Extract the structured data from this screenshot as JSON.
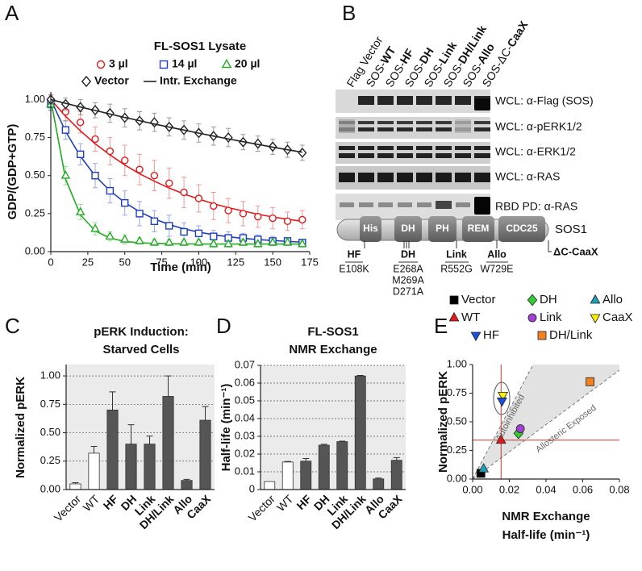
{
  "panel_labels": [
    "A",
    "B",
    "C",
    "D",
    "E"
  ],
  "chart_data": [
    {
      "type": "line",
      "title": "FL-SOS1 Lysate",
      "xlabel": "Time (min)",
      "ylabel": "GDP/(GDP+GTP)",
      "x": [
        0,
        10,
        20,
        30,
        40,
        50,
        60,
        70,
        80,
        90,
        100,
        110,
        120,
        130,
        140,
        150,
        160,
        170
      ],
      "xlim": [
        0,
        175
      ],
      "xticks": [
        0,
        25,
        50,
        75,
        100,
        125,
        150,
        175
      ],
      "ylim": [
        0,
        1.05
      ],
      "yticks": [
        {
          "value": 0,
          "label": "0.00"
        },
        0.25,
        {
          "value": 0.5,
          "label": "0.50"
        },
        0.75,
        {
          "value": 1,
          "label": "1.00"
        }
      ],
      "grid": false,
      "marker_fill": "open",
      "series": [
        {
          "name": "3 µl",
          "color": "#e31a1c",
          "marker": "circle",
          "values": [
            0.98,
            0.92,
            0.85,
            0.74,
            0.66,
            0.6,
            0.54,
            0.5,
            0.45,
            0.39,
            0.35,
            0.3,
            0.27,
            0.25,
            0.23,
            0.22,
            0.2,
            0.21
          ],
          "errors": [
            0.05,
            0.06,
            0.07,
            0.08,
            0.09,
            0.1,
            0.1,
            0.1,
            0.1,
            0.1,
            0.09,
            0.09,
            0.08,
            0.08,
            0.07,
            0.07,
            0.06,
            0.06
          ],
          "fit": [
            1.0,
            0.89,
            0.794,
            0.709,
            0.636,
            0.57,
            0.512,
            0.463,
            0.418,
            0.379,
            0.346,
            0.315,
            0.289,
            0.267,
            0.246,
            0.228,
            0.213,
            0.199
          ]
        },
        {
          "name": "14 µl",
          "color": "#1f3fbf",
          "marker": "square",
          "values": [
            0.97,
            0.8,
            0.64,
            0.5,
            0.4,
            0.32,
            0.25,
            0.2,
            0.17,
            0.13,
            0.12,
            0.1,
            0.09,
            0.09,
            0.08,
            0.07,
            0.07,
            0.06
          ],
          "errors": [
            0.04,
            0.06,
            0.07,
            0.08,
            0.08,
            0.08,
            0.08,
            0.07,
            0.07,
            0.06,
            0.05,
            0.04,
            0.04,
            0.03,
            0.03,
            0.03,
            0.02,
            0.02
          ],
          "fit": [
            1.0,
            0.79,
            0.627,
            0.498,
            0.4,
            0.323,
            0.262,
            0.215,
            0.178,
            0.15,
            0.128,
            0.111,
            0.098,
            0.087,
            0.079,
            0.073,
            0.067,
            0.063
          ]
        },
        {
          "name": "20 µl",
          "color": "#22aa22",
          "marker": "triangle",
          "values": [
            0.97,
            0.5,
            0.26,
            0.15,
            0.1,
            0.08,
            0.07,
            0.06,
            0.06,
            0.06,
            0.06,
            0.05,
            0.05,
            0.06,
            0.05,
            0.06,
            0.06,
            0.05
          ],
          "errors": [
            0.03,
            0.06,
            0.05,
            0.04,
            0.03,
            0.03,
            0.02,
            0.02,
            0.02,
            0.02,
            0.02,
            0.02,
            0.02,
            0.02,
            0.02,
            0.02,
            0.02,
            0.02
          ],
          "fit": [
            1.0,
            0.477,
            0.242,
            0.136,
            0.089,
            0.067,
            0.058,
            0.054,
            0.052,
            0.051,
            0.05,
            0.05,
            0.05,
            0.05,
            0.05,
            0.05,
            0.05,
            0.05
          ]
        },
        {
          "name": "Vector",
          "color": "#222222",
          "marker": "diamond",
          "values": [
            1.0,
            0.97,
            0.95,
            0.93,
            0.91,
            0.88,
            0.86,
            0.85,
            0.82,
            0.8,
            0.78,
            0.76,
            0.75,
            0.72,
            0.71,
            0.69,
            0.67,
            0.65
          ],
          "errors": [
            0.03,
            0.04,
            0.05,
            0.05,
            0.06,
            0.06,
            0.06,
            0.06,
            0.06,
            0.06,
            0.06,
            0.06,
            0.06,
            0.05,
            0.05,
            0.05,
            0.05,
            0.05
          ]
        },
        {
          "name": "Intr. Exchange",
          "color": "#222222",
          "style": "line",
          "values": [
            1.0,
            0.975,
            0.951,
            0.928,
            0.905,
            0.882,
            0.861,
            0.839,
            0.819,
            0.799,
            0.779,
            0.76,
            0.741,
            0.723,
            0.705,
            0.687,
            0.67,
            0.654
          ]
        }
      ]
    },
    {
      "type": "bar",
      "title": [
        "pERK Induction:",
        "Starved Cells"
      ],
      "ylabel": "Normalized pERK",
      "categories": [
        "Vector",
        "WT",
        "HF",
        "DH",
        "Link",
        "DH/Link",
        "Allo",
        "CaaX"
      ],
      "category_bold": [
        false,
        false,
        true,
        true,
        true,
        true,
        true,
        true
      ],
      "values": [
        0.05,
        0.32,
        0.7,
        0.4,
        0.4,
        0.82,
        0.08,
        0.61
      ],
      "errors": [
        0.01,
        0.06,
        0.16,
        0.17,
        0.07,
        0.18,
        0.01,
        0.12
      ],
      "colors": [
        "#ffffff",
        "#ffffff",
        "#555555",
        "#555555",
        "#555555",
        "#555555",
        "#555555",
        "#555555"
      ],
      "ylim": [
        0,
        1.1
      ],
      "yticks": [
        {
          "value": 0,
          "label": "0.00"
        },
        0.25,
        {
          "value": 0.5,
          "label": "0.50"
        },
        0.75,
        {
          "value": 1,
          "label": "1.00"
        }
      ],
      "grid": true,
      "plot_background": "#ebebeb"
    },
    {
      "type": "bar",
      "title": [
        "FL-SOS1",
        "NMR Exchange"
      ],
      "ylabel": "Half-life (min⁻¹)",
      "categories": [
        "Vector",
        "WT",
        "HF",
        "DH",
        "Link",
        "DH/Link",
        "Allo",
        "CaaX"
      ],
      "category_bold": [
        false,
        false,
        true,
        true,
        true,
        true,
        true,
        true
      ],
      "values": [
        0.0045,
        0.0155,
        0.016,
        0.025,
        0.027,
        0.064,
        0.006,
        0.0165
      ],
      "errors": [
        0,
        0.0003,
        0.0015,
        0.0005,
        0.0003,
        0.0003,
        0.0005,
        0.0015
      ],
      "colors": [
        "#ffffff",
        "#ffffff",
        "#555555",
        "#555555",
        "#555555",
        "#555555",
        "#555555",
        "#555555"
      ],
      "ylim": [
        0,
        0.07
      ],
      "yticks": [
        0,
        0.01,
        0.02,
        0.03,
        0.04,
        0.05,
        0.06,
        0.07
      ],
      "grid": true,
      "plot_background": "#ebebeb"
    },
    {
      "type": "scatter",
      "xlabel": [
        "NMR Exchange",
        "Half-life (min⁻¹)"
      ],
      "ylabel": "Normalized pERK",
      "xlim": [
        0,
        0.08
      ],
      "xticks": [
        {
          "value": 0,
          "label": "0.00"
        },
        0.02,
        0.04,
        0.06,
        0.08
      ],
      "ylim": [
        0,
        1.0
      ],
      "yticks": [
        {
          "value": 0,
          "label": "0.00"
        },
        0.25,
        {
          "value": 0.5,
          "label": "0.50"
        },
        0.75,
        {
          "value": 1,
          "label": "1.00"
        }
      ],
      "grid": false,
      "ref_lines": {
        "x": 0.0155,
        "y": 0.34,
        "color": "#c0392b"
      },
      "annotations": [
        "Autoinhibited",
        "Allosteric Exposed"
      ],
      "series": [
        {
          "name": "Vector",
          "color": "#000000",
          "marker": "square",
          "x": [
            0.0045
          ],
          "values": [
            0.05
          ]
        },
        {
          "name": "DH",
          "color": "#33cc33",
          "marker": "diamond",
          "x": [
            0.025
          ],
          "values": [
            0.4
          ]
        },
        {
          "name": "Allo",
          "color": "#1aa0b8",
          "marker": "triangle",
          "x": [
            0.006
          ],
          "values": [
            0.09
          ]
        },
        {
          "name": "WT",
          "color": "#e31a1c",
          "marker": "triangle",
          "x": [
            0.0155
          ],
          "values": [
            0.34
          ]
        },
        {
          "name": "Link",
          "color": "#a040d0",
          "marker": "circle",
          "x": [
            0.026
          ],
          "values": [
            0.44
          ]
        },
        {
          "name": "CaaX",
          "color": "#ffee00",
          "marker": "triangle-down",
          "x": [
            0.0165
          ],
          "values": [
            0.73
          ]
        },
        {
          "name": "HF",
          "color": "#1a50e0",
          "marker": "triangle-down",
          "x": [
            0.016
          ],
          "values": [
            0.68
          ]
        },
        {
          "name": "DH/Link",
          "color": "#f08020",
          "marker": "square",
          "x": [
            0.064
          ],
          "values": [
            0.85
          ]
        }
      ]
    }
  ],
  "blot": {
    "lanes": [
      {
        "text": "Flag Vector"
      },
      {
        "prefix": "SOS-",
        "text": "WT"
      },
      {
        "prefix": "SOS-",
        "text": "HF"
      },
      {
        "prefix": "SOS-",
        "text": "DH"
      },
      {
        "prefix": "SOS-",
        "text": "Link"
      },
      {
        "prefix": "SOS-",
        "text": "DH/Link"
      },
      {
        "prefix": "SOS-",
        "text": "Allo"
      },
      {
        "prefix": "SOS-ΔC-",
        "text": "CaaX"
      }
    ],
    "rows": [
      "WCL: α-Flag (SOS)",
      "WCL: α-pERK1/2",
      "WCL: α-ERK1/2",
      "WCL: α-RAS",
      "RBD PD: α-RAS"
    ]
  },
  "domain_diagram": {
    "domains": [
      "His",
      "DH",
      "PH",
      "REM",
      "CDC25"
    ],
    "protein": "SOS1",
    "truncation": "ΔC-CaaX",
    "mutations": [
      {
        "label": "HF",
        "changes": [
          "E108K"
        ]
      },
      {
        "label": "DH",
        "changes": [
          "E268A",
          "M269A",
          "D271A"
        ]
      },
      {
        "label": "Link",
        "changes": [
          "R552G"
        ]
      },
      {
        "label": "Allo",
        "changes": [
          "W729E"
        ]
      }
    ]
  }
}
